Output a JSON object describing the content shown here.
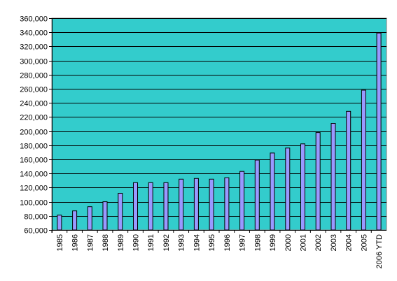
{
  "chart_data": {
    "type": "bar",
    "title": "",
    "xlabel": "",
    "ylabel": "",
    "ylim": [
      60000,
      360000
    ],
    "ytick_step": 20000,
    "ytick_labels": [
      "60,000",
      "80,000",
      "100,000",
      "120,000",
      "140,000",
      "160,000",
      "180,000",
      "200,000",
      "220,000",
      "240,000",
      "260,000",
      "280,000",
      "300,000",
      "320,000",
      "340,000",
      "360,000"
    ],
    "grid": true,
    "legend": "none",
    "categories": [
      "1985",
      "1986",
      "1987",
      "1988",
      "1989",
      "1990",
      "1991",
      "1992",
      "1993",
      "1994",
      "1995",
      "1996",
      "1997",
      "1998",
      "1999",
      "2000",
      "2001",
      "2002",
      "2003",
      "2004",
      "2005",
      "2006 YTD"
    ],
    "values": [
      81000,
      87000,
      93000,
      100000,
      112000,
      127000,
      127000,
      127000,
      132000,
      133000,
      132000,
      134000,
      143000,
      159000,
      169000,
      176000,
      182000,
      198000,
      211000,
      228000,
      258000,
      339000
    ],
    "colors": {
      "plot_background": "#33CCCC",
      "bar_fill": "#9999FF",
      "bar_stroke": "#000000",
      "gridline": "#000000"
    }
  }
}
